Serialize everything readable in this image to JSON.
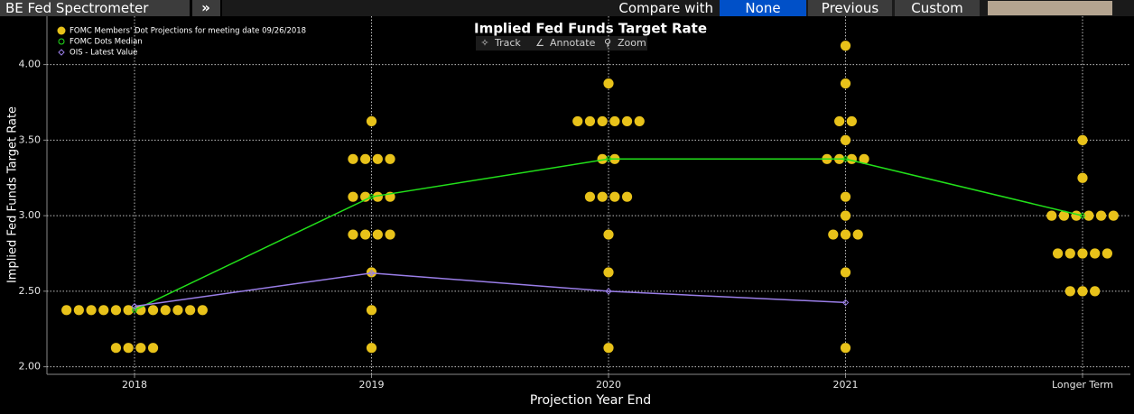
{
  "toolbar": {
    "title": "BE Fed Spectrometer",
    "menu_button": "»",
    "compare_label": "Compare with",
    "options": [
      "None",
      "Previous",
      "Custom"
    ],
    "selected": 0
  },
  "chart_data": {
    "type": "dotplot",
    "title": "Implied Fed Funds Target Rate",
    "tools": [
      "Track",
      "Annotate",
      "Zoom"
    ],
    "xlabel": "Projection Year End",
    "ylabel": "Implied Fed Funds Target Rate",
    "categories": [
      "2018",
      "2019",
      "2020",
      "2021",
      "Longer Term"
    ],
    "series": [
      {
        "name": "FOMC Members' Dot Projections for meeting date 09/26/2018",
        "color": "#e8c21a",
        "values": [
          [
            2.375,
            2.375,
            2.375,
            2.375,
            2.375,
            2.375,
            2.375,
            2.375,
            2.375,
            2.375,
            2.375,
            2.375,
            2.125,
            2.125,
            2.125,
            2.125
          ],
          [
            3.625,
            3.375,
            3.375,
            3.375,
            3.375,
            3.125,
            3.125,
            3.125,
            3.125,
            2.875,
            2.875,
            2.875,
            2.875,
            2.625,
            2.375,
            2.125
          ],
          [
            3.875,
            3.625,
            3.625,
            3.625,
            3.625,
            3.625,
            3.625,
            3.375,
            3.375,
            3.125,
            3.125,
            3.125,
            3.125,
            2.875,
            2.625,
            2.125
          ],
          [
            4.125,
            3.875,
            3.625,
            3.625,
            3.5,
            3.375,
            3.375,
            3.375,
            3.375,
            3.125,
            3.0,
            2.875,
            2.875,
            2.875,
            2.625,
            2.125
          ],
          [
            3.5,
            3.25,
            3.0,
            3.0,
            3.0,
            3.0,
            3.0,
            3.0,
            2.75,
            2.75,
            2.75,
            2.75,
            2.75,
            2.5,
            2.5,
            2.5
          ]
        ]
      },
      {
        "name": "FOMC Dots Median",
        "color": "#22e01a",
        "values": [
          2.375,
          3.125,
          3.375,
          3.375,
          3.0
        ]
      },
      {
        "name": "OIS - Latest Value",
        "color": "#9a7ee8",
        "values": [
          2.4,
          2.62,
          2.5,
          2.425,
          null
        ]
      }
    ],
    "ylim": [
      1.95,
      4.32
    ],
    "yticks": [
      {
        "value": 2,
        "label": "2.00"
      },
      {
        "value": 2.5,
        "label": "2.50"
      },
      {
        "value": 3,
        "label": "3.00"
      },
      {
        "value": 3.5,
        "label": "3.50"
      },
      {
        "value": 4,
        "label": "4.00"
      }
    ],
    "grid": true
  }
}
